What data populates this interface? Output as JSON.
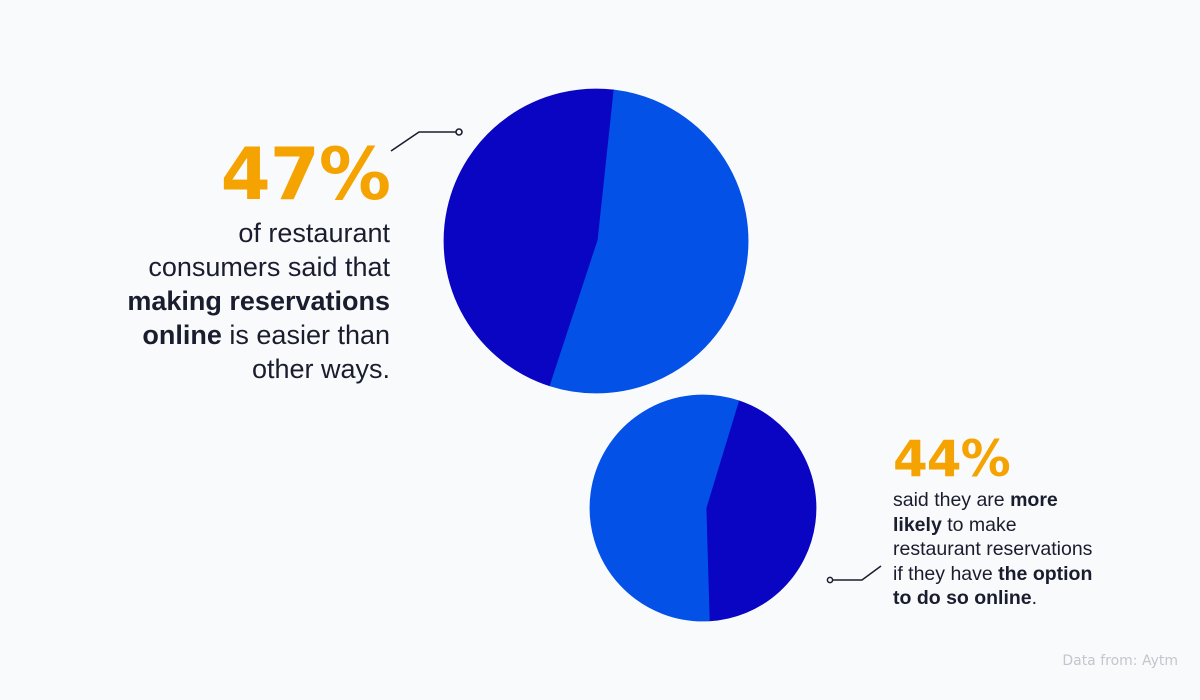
{
  "colors": {
    "background": "#f9fafc",
    "dark_blue": "#0a05c2",
    "bright_blue": "#0451e8",
    "accent_orange": "#f5a300",
    "text": "#1a1d2e",
    "source_text": "#c3c6cd",
    "connector": "#1a1d2e"
  },
  "chart_data": [
    {
      "type": "pie",
      "title": "",
      "slices": [
        {
          "value": 47,
          "color": "#0a05c2"
        },
        {
          "value": 53,
          "color": "#0451e8"
        }
      ]
    },
    {
      "type": "pie",
      "title": "",
      "slices": [
        {
          "value": 44,
          "color": "#0a05c2"
        },
        {
          "value": 56,
          "color": "#0451e8"
        }
      ]
    }
  ],
  "stat1": {
    "percent": "47%",
    "line1": "of restaurant",
    "line2": "consumers said that",
    "bold_a": "making reservations",
    "bold_b": "online",
    "line4_rest": " is easier than",
    "line5": "other ways."
  },
  "stat2": {
    "percent": "44%",
    "pre1": "said they are ",
    "bold1a": "more",
    "bold1b": "likely",
    "post1": " to make",
    "line3": "restaurant reservations",
    "pre2": "if they have ",
    "bold2a": "the option",
    "bold2b": "to do so online",
    "post2": "."
  },
  "source": "Data from: Aytm"
}
